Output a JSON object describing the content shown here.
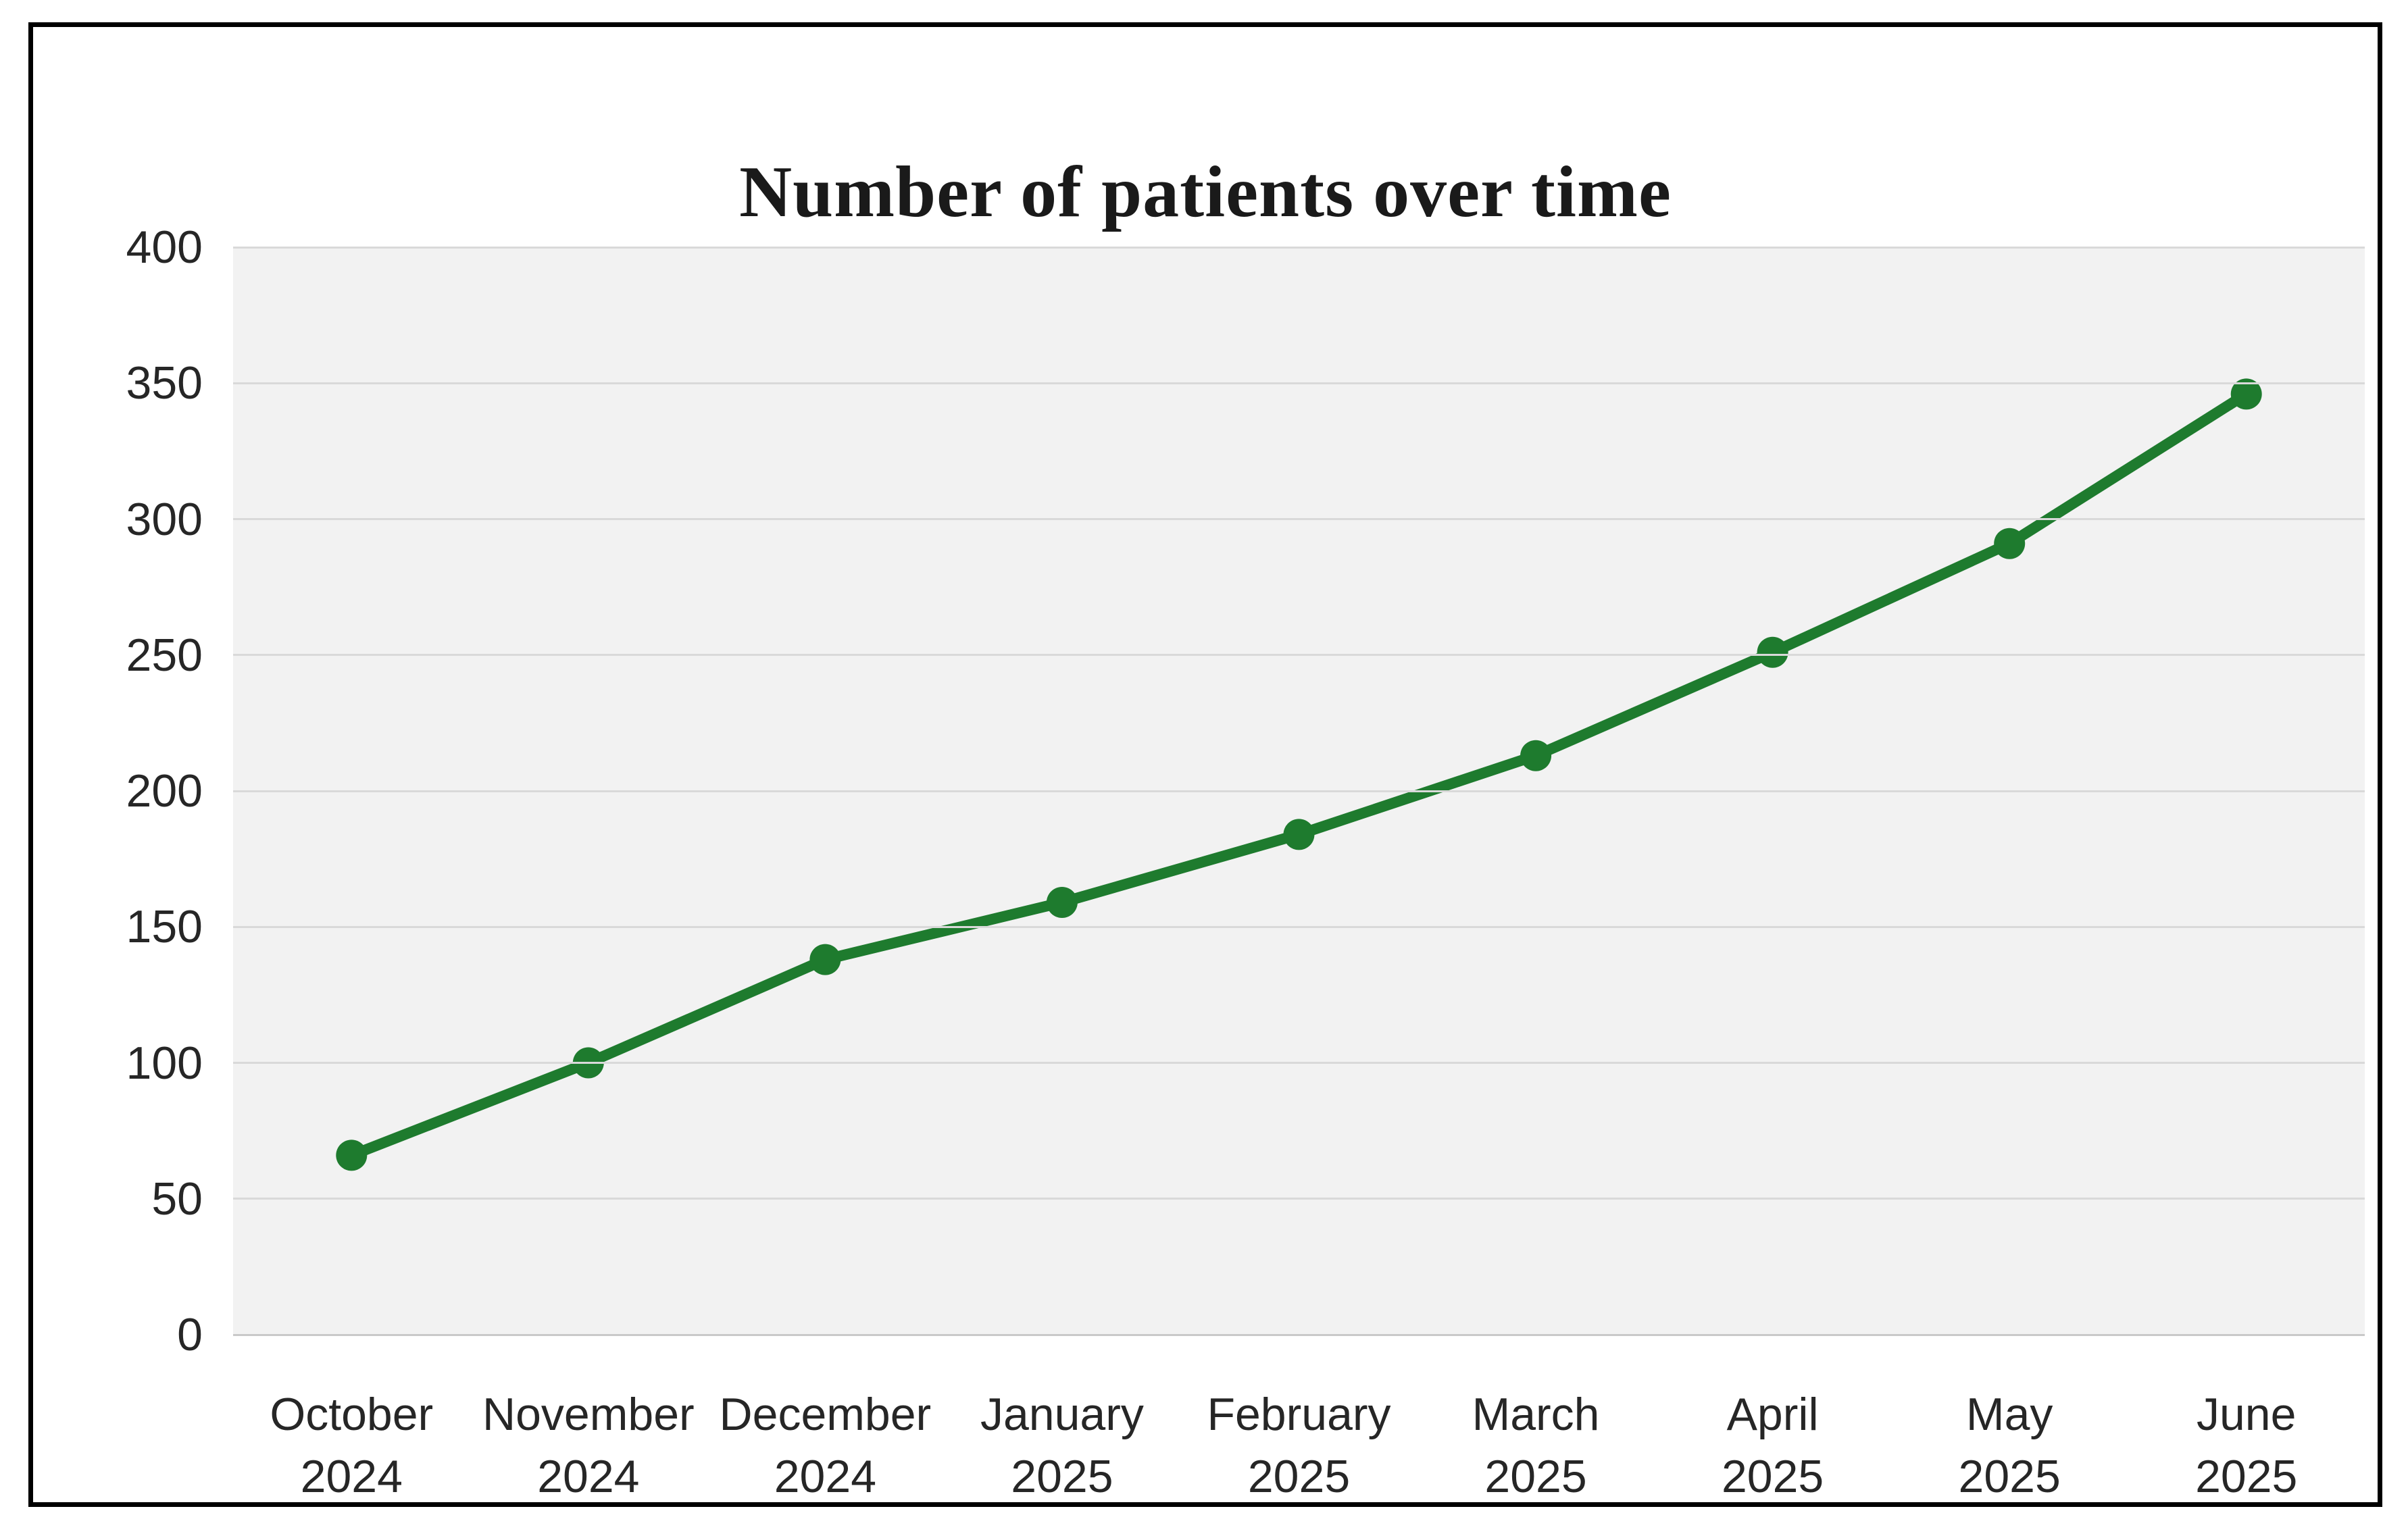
{
  "chart_data": {
    "type": "line",
    "title": "Number of patients over time",
    "categories": [
      {
        "line1": "October",
        "line2": "2024"
      },
      {
        "line1": "November",
        "line2": "2024"
      },
      {
        "line1": "December",
        "line2": "2024"
      },
      {
        "line1": "January",
        "line2": "2025"
      },
      {
        "line1": "February",
        "line2": "2025"
      },
      {
        "line1": "March",
        "line2": "2025"
      },
      {
        "line1": "April",
        "line2": "2025"
      },
      {
        "line1": "May",
        "line2": "2025"
      },
      {
        "line1": "June",
        "line2": "2025"
      }
    ],
    "values": [
      66,
      100,
      138,
      159,
      184,
      213,
      251,
      291,
      346
    ],
    "yticks": [
      0,
      50,
      100,
      150,
      200,
      250,
      300,
      350,
      400
    ],
    "ylim": [
      0,
      400
    ],
    "xlabel": "",
    "ylabel": "",
    "legend": "none",
    "grid": "horizontal",
    "marker": "circle",
    "colors": {
      "line": "#1E7B2E",
      "marker": "#1E7B2E",
      "plot_background": "#F2F2F2",
      "gridline": "#D9D9D9",
      "baseline": "#C9C9C9",
      "frame_border": "#000000",
      "title_text": "#1A1A1A",
      "axis_text": "#262626"
    }
  }
}
